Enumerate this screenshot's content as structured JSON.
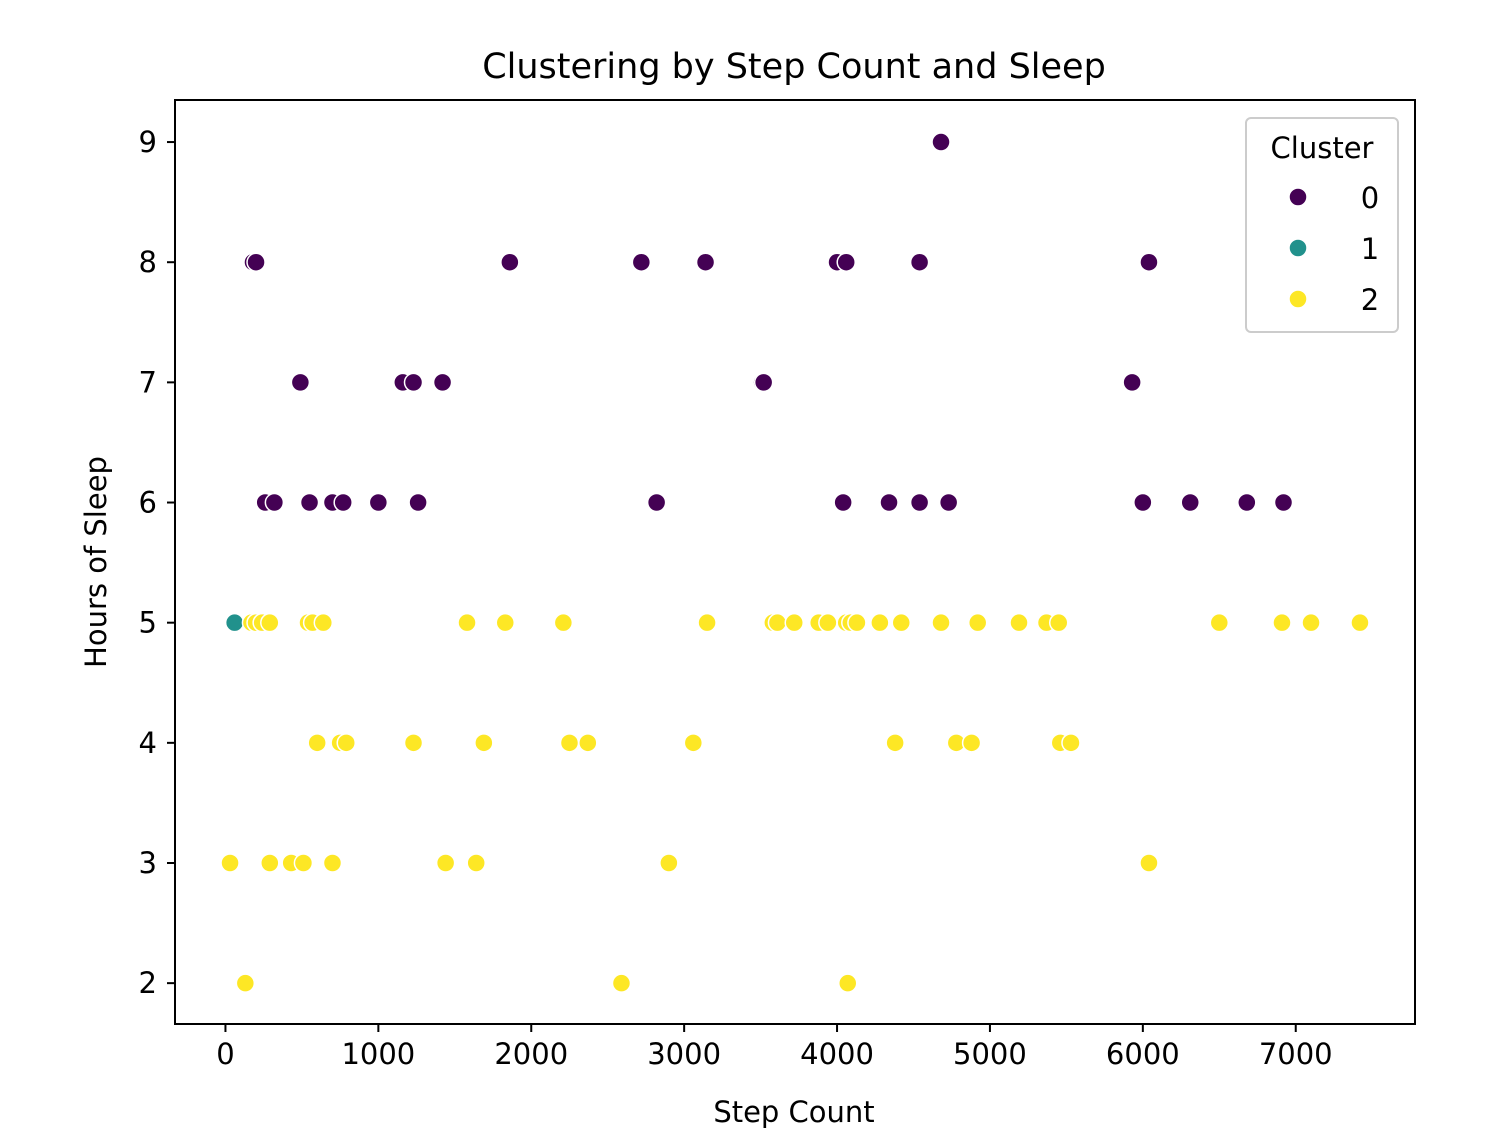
{
  "chart_data": {
    "type": "scatter",
    "title": "Clustering by Step Count and Sleep",
    "xlabel": "Step Count",
    "ylabel": "Hours of Sleep",
    "xlim": [
      -330,
      7780
    ],
    "ylim": [
      1.66,
      9.35
    ],
    "xticks": [
      0,
      1000,
      2000,
      3000,
      4000,
      5000,
      6000,
      7000
    ],
    "yticks": [
      2,
      3,
      4,
      5,
      6,
      7,
      8,
      9
    ],
    "grid": false,
    "legend": {
      "title": "Cluster",
      "position": "top-right"
    },
    "series": [
      {
        "name": "0",
        "color": "#440154",
        "points": [
          [
            180,
            8
          ],
          [
            200,
            8
          ],
          [
            1860,
            8
          ],
          [
            2720,
            8
          ],
          [
            3140,
            8
          ],
          [
            4000,
            8
          ],
          [
            4060,
            8
          ],
          [
            4540,
            8
          ],
          [
            6040,
            8
          ],
          [
            4680,
            9
          ],
          [
            490,
            7
          ],
          [
            1160,
            7
          ],
          [
            1230,
            7
          ],
          [
            1420,
            7
          ],
          [
            3510,
            7
          ],
          [
            3520,
            7
          ],
          [
            5930,
            7
          ],
          [
            260,
            6
          ],
          [
            320,
            6
          ],
          [
            550,
            6
          ],
          [
            700,
            6
          ],
          [
            770,
            6
          ],
          [
            1000,
            6
          ],
          [
            1260,
            6
          ],
          [
            2820,
            6
          ],
          [
            4040,
            6
          ],
          [
            4340,
            6
          ],
          [
            4540,
            6
          ],
          [
            4730,
            6
          ],
          [
            6000,
            6
          ],
          [
            6310,
            6
          ],
          [
            6680,
            6
          ],
          [
            6920,
            6
          ]
        ]
      },
      {
        "name": "1",
        "color": "#21918c",
        "points": [
          [
            60,
            5
          ]
        ]
      },
      {
        "name": "2",
        "color": "#fde725",
        "points": [
          [
            170,
            5
          ],
          [
            200,
            5
          ],
          [
            240,
            5
          ],
          [
            290,
            5
          ],
          [
            540,
            5
          ],
          [
            570,
            5
          ],
          [
            640,
            5
          ],
          [
            1580,
            5
          ],
          [
            1830,
            5
          ],
          [
            2210,
            5
          ],
          [
            3150,
            5
          ],
          [
            3580,
            5
          ],
          [
            3610,
            5
          ],
          [
            3720,
            5
          ],
          [
            3880,
            5
          ],
          [
            3940,
            5
          ],
          [
            4060,
            5
          ],
          [
            4090,
            5
          ],
          [
            4130,
            5
          ],
          [
            4280,
            5
          ],
          [
            4420,
            5
          ],
          [
            4680,
            5
          ],
          [
            4920,
            5
          ],
          [
            5190,
            5
          ],
          [
            5370,
            5
          ],
          [
            5450,
            5
          ],
          [
            6500,
            5
          ],
          [
            6910,
            5
          ],
          [
            7100,
            5
          ],
          [
            7420,
            5
          ],
          [
            600,
            4
          ],
          [
            750,
            4
          ],
          [
            790,
            4
          ],
          [
            1230,
            4
          ],
          [
            1690,
            4
          ],
          [
            2250,
            4
          ],
          [
            2370,
            4
          ],
          [
            3060,
            4
          ],
          [
            4380,
            4
          ],
          [
            4780,
            4
          ],
          [
            4880,
            4
          ],
          [
            5460,
            4
          ],
          [
            5530,
            4
          ],
          [
            30,
            3
          ],
          [
            290,
            3
          ],
          [
            430,
            3
          ],
          [
            510,
            3
          ],
          [
            700,
            3
          ],
          [
            1440,
            3
          ],
          [
            1640,
            3
          ],
          [
            2900,
            3
          ],
          [
            6040,
            3
          ],
          [
            130,
            2
          ],
          [
            2590,
            2
          ],
          [
            4070,
            2
          ]
        ]
      }
    ]
  }
}
